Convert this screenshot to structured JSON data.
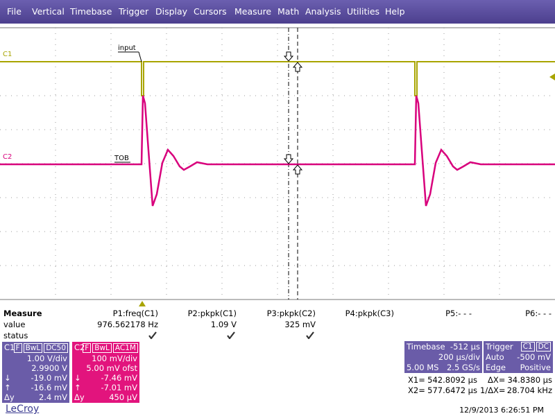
{
  "menu": [
    "File",
    "Vertical",
    "Timebase",
    "Trigger",
    "Display",
    "Cursors",
    "Measure",
    "Math",
    "Analysis",
    "Utilities",
    "Help"
  ],
  "screen": {
    "channel_labels": [
      "C1",
      "C2"
    ],
    "annotations": [
      "input",
      "TOB"
    ]
  },
  "measure": {
    "title": "Measure",
    "row_labels": [
      "value",
      "status"
    ],
    "params": [
      {
        "name": "P1:freq(C1)",
        "value": "976.562178 Hz"
      },
      {
        "name": "P2:pkpk(C1)",
        "value": "1.09 V"
      },
      {
        "name": "P3:pkpk(C2)",
        "value": "325 mV"
      },
      {
        "name": "P4:pkpk(C3)"
      },
      {
        "name": "P5:- - -"
      },
      {
        "name": "P6:- - -"
      }
    ]
  },
  "channels": [
    {
      "name": "C1",
      "tags": [
        "F",
        "BwL",
        "DC50"
      ],
      "scale": "1.00 V/div",
      "offset": "2.9900 V",
      "rows": [
        {
          "label": "↓",
          "value": "-19.0 mV"
        },
        {
          "label": "↑",
          "value": "-16.6 mV"
        },
        {
          "label": "Δy",
          "value": "2.4 mV"
        }
      ]
    },
    {
      "name": "C2",
      "tags": [
        "F",
        "BwL",
        "AC1M"
      ],
      "scale": "100 mV/div",
      "offset": "5.00 mV ofst",
      "rows": [
        {
          "label": "↓",
          "value": "-7.46 mV"
        },
        {
          "label": "↑",
          "value": "-7.01 mV"
        },
        {
          "label": "Δy",
          "value": "450 µV"
        }
      ]
    }
  ],
  "timebase": {
    "title": "Timebase",
    "delay": "-512 µs",
    "scale": "200 µs/div",
    "points": "5.00 MS",
    "rate": "2.5 GS/s"
  },
  "trigger": {
    "title": "Trigger",
    "source": "C1",
    "coupling": "DC",
    "mode": "Auto",
    "level": "-500 mV",
    "type": "Edge",
    "slope": "Positive"
  },
  "cursors": [
    {
      "label": "X1=",
      "value": "542.8092 µs"
    },
    {
      "label": "ΔX=",
      "value": "34.8380 µs"
    },
    {
      "label": "X2=",
      "value": "577.6472 µs"
    },
    {
      "label": "1/ΔX=",
      "value": "28.704 kHz"
    }
  ],
  "footer": {
    "brand": "LeCroy",
    "timestamp": "12/9/2013 6:26:51 PM"
  }
}
